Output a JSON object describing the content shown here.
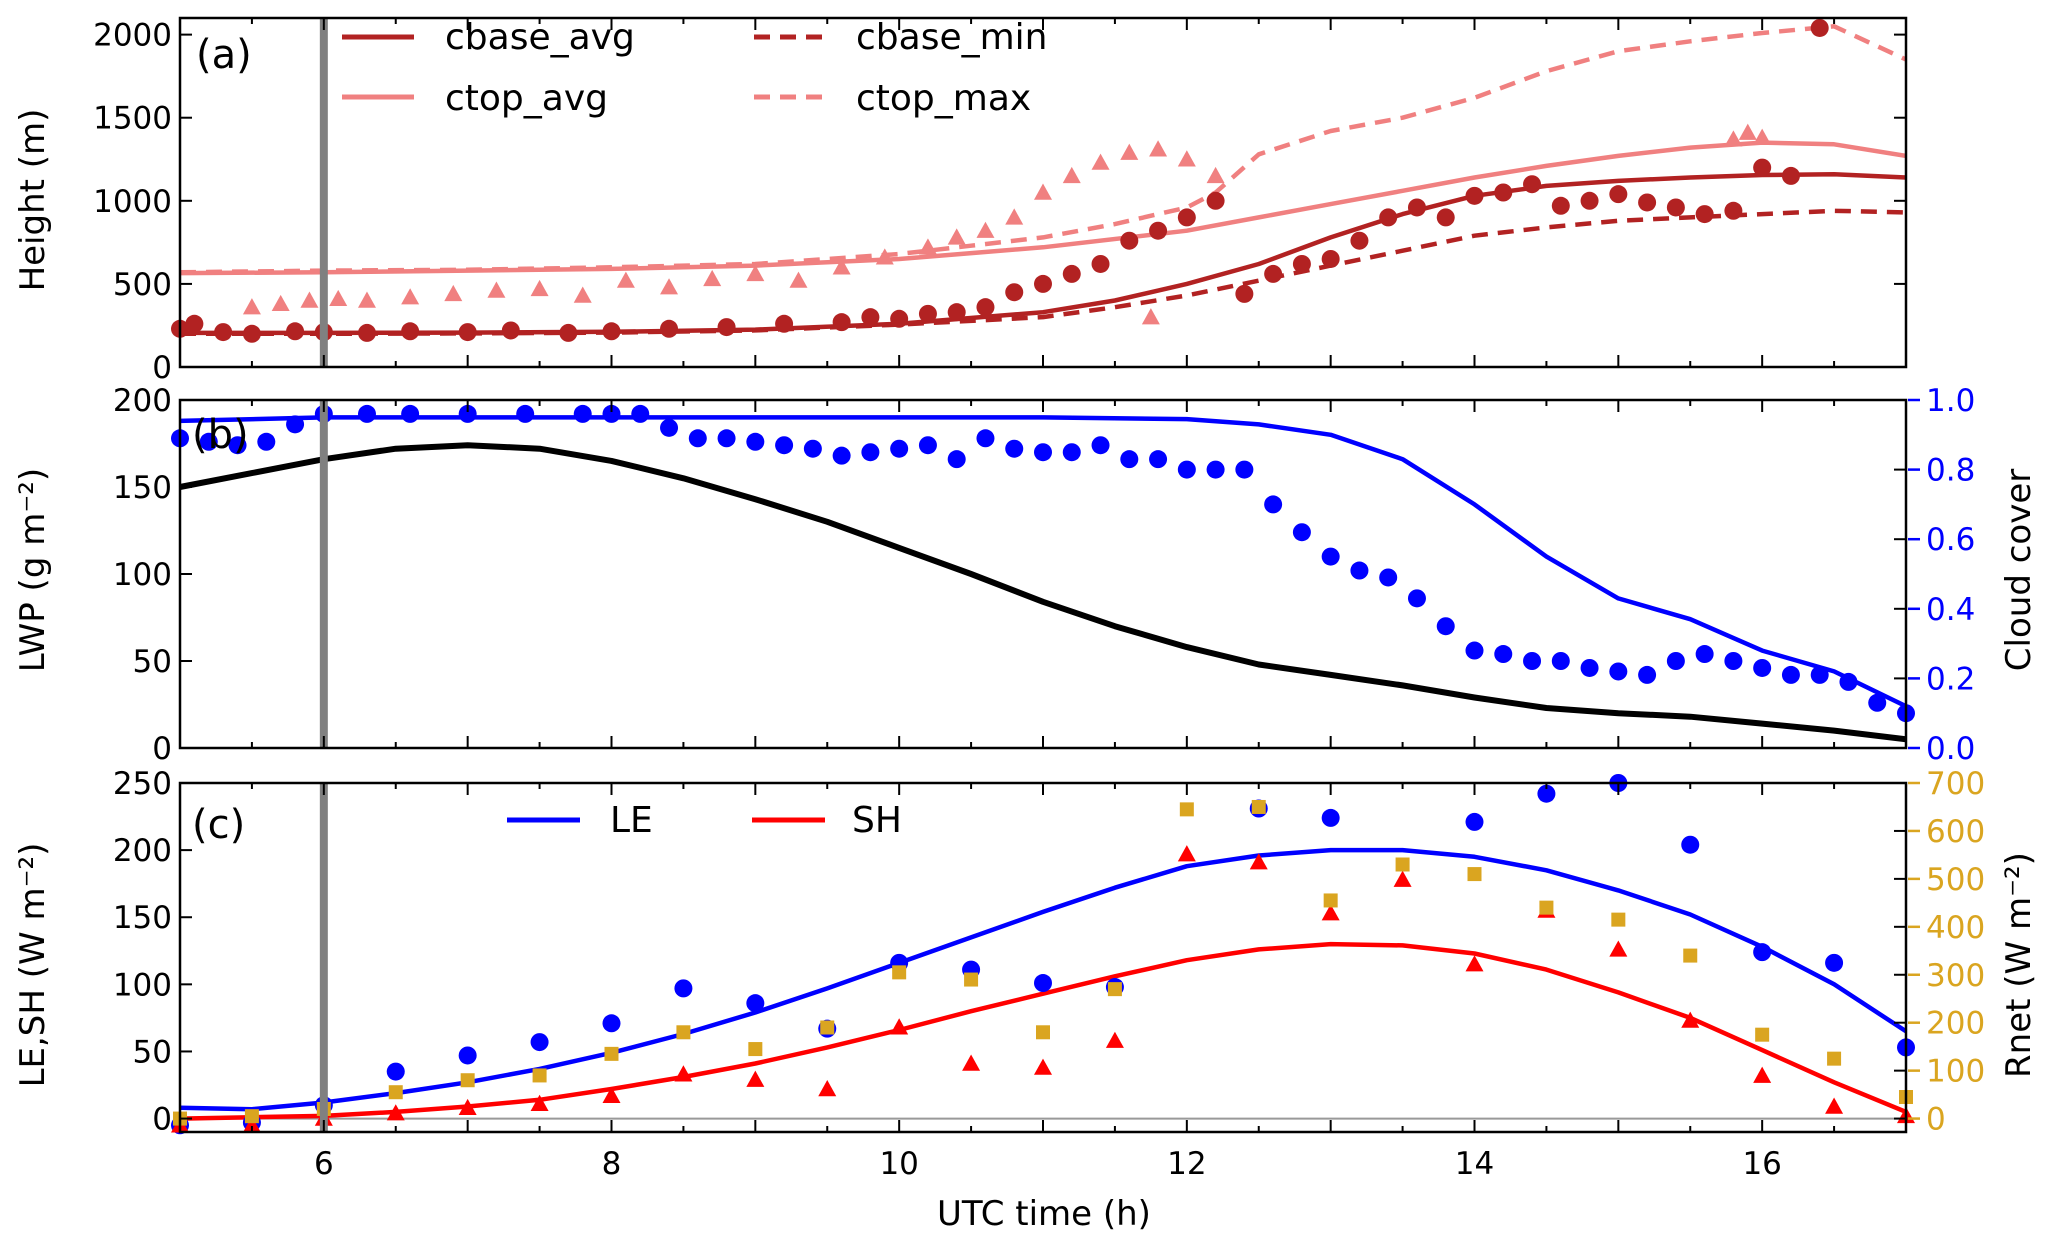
{
  "colors": {
    "cbase": "#b22222",
    "ctop": "#f08080",
    "cloud": "#0000ff",
    "lwp": "#000000",
    "le": "#0000ff",
    "sh": "#ff0000",
    "rnet": "#daa520",
    "vline": "#808080"
  },
  "chart_data": [
    {
      "type": "line",
      "panel_label": "(a)",
      "xlim": [
        5,
        17
      ],
      "ylim": [
        0,
        2100
      ],
      "ylabel": "Height (m)",
      "yticks": [
        0,
        500,
        1000,
        1500,
        2000
      ],
      "vline_x": 6,
      "series": [
        {
          "name": "cbase_avg",
          "style": "solid",
          "color": "cbase",
          "x": [
            5,
            6,
            7,
            8,
            9,
            10,
            11,
            11.5,
            12,
            12.5,
            13,
            13.5,
            14,
            14.5,
            15,
            15.5,
            16,
            16.5,
            17
          ],
          "y": [
            205,
            205,
            207,
            212,
            225,
            260,
            330,
            400,
            500,
            620,
            780,
            920,
            1030,
            1090,
            1120,
            1140,
            1155,
            1160,
            1140
          ]
        },
        {
          "name": "cbase_min",
          "style": "dashed",
          "color": "cbase",
          "x": [
            5,
            6,
            7,
            8,
            9,
            10,
            11,
            11.5,
            12,
            12.5,
            13,
            13.5,
            14,
            14.5,
            15,
            15.5,
            16,
            16.5,
            17
          ],
          "y": [
            200,
            200,
            202,
            207,
            220,
            255,
            300,
            360,
            430,
            520,
            610,
            700,
            790,
            840,
            880,
            900,
            920,
            940,
            930
          ]
        },
        {
          "name": "ctop_avg",
          "style": "solid",
          "color": "ctop",
          "x": [
            5,
            6,
            7,
            8,
            9,
            10,
            11,
            12,
            12.5,
            13,
            13.5,
            14,
            14.5,
            15,
            15.5,
            16,
            16.5,
            17
          ],
          "y": [
            565,
            570,
            580,
            590,
            610,
            650,
            720,
            820,
            900,
            980,
            1060,
            1140,
            1210,
            1270,
            1320,
            1350,
            1340,
            1270
          ]
        },
        {
          "name": "ctop_max",
          "style": "dashed",
          "color": "ctop",
          "x": [
            5,
            6,
            7,
            8,
            9,
            9.5,
            10,
            10.5,
            11,
            11.5,
            12,
            12.2,
            12.5,
            13,
            13.5,
            14,
            14.5,
            15,
            15.5,
            16,
            16.5,
            17
          ],
          "y": [
            570,
            580,
            585,
            600,
            620,
            650,
            680,
            730,
            780,
            860,
            960,
            1050,
            1280,
            1420,
            1500,
            1620,
            1780,
            1900,
            1960,
            2010,
            2050,
            1850
          ]
        },
        {
          "name": "cbase_obs",
          "style": "markers",
          "marker": "circle",
          "color": "cbase",
          "x": [
            5,
            5.1,
            5.3,
            5.5,
            5.8,
            6,
            6.3,
            6.6,
            7,
            7.3,
            7.7,
            8,
            8.4,
            8.8,
            9.2,
            9.6,
            9.8,
            10,
            10.2,
            10.4,
            10.6,
            10.8,
            11,
            11.2,
            11.4,
            11.6,
            11.8,
            12,
            12.2,
            12.4,
            12.6,
            12.8,
            13,
            13.2,
            13.4,
            13.6,
            13.8,
            14,
            14.2,
            14.4,
            14.6,
            14.8,
            15,
            15.2,
            15.4,
            15.6,
            15.8,
            16,
            16.2,
            16.4
          ],
          "y": [
            230,
            260,
            210,
            200,
            215,
            210,
            205,
            215,
            210,
            220,
            205,
            215,
            230,
            240,
            260,
            270,
            300,
            290,
            320,
            330,
            360,
            450,
            500,
            560,
            620,
            760,
            820,
            900,
            1000,
            440,
            560,
            620,
            650,
            760,
            900,
            960,
            900,
            1030,
            1050,
            1100,
            970,
            1000,
            1040,
            990,
            960,
            920,
            940,
            1200,
            1150,
            2040
          ]
        },
        {
          "name": "ctop_obs",
          "style": "markers",
          "marker": "triangle",
          "color": "ctop",
          "x": [
            5.5,
            5.7,
            5.9,
            6.1,
            6.3,
            6.6,
            6.9,
            7.2,
            7.5,
            7.8,
            8.1,
            8.4,
            8.7,
            9,
            9.3,
            9.6,
            9.9,
            10.2,
            10.4,
            10.6,
            10.8,
            11,
            11.2,
            11.4,
            11.6,
            11.8,
            12,
            12.2,
            11.75,
            15.8,
            15.9,
            16
          ],
          "y": [
            360,
            380,
            400,
            410,
            400,
            420,
            440,
            460,
            470,
            430,
            520,
            480,
            530,
            560,
            520,
            600,
            660,
            720,
            780,
            820,
            900,
            1050,
            1150,
            1230,
            1290,
            1310,
            1250,
            1150,
            300,
            1370,
            1410,
            1380
          ]
        }
      ]
    },
    {
      "type": "line",
      "panel_label": "(b)",
      "xlim": [
        5,
        17
      ],
      "ylim": [
        0,
        200
      ],
      "ylabel": "LWP (g m⁻²)",
      "yticks": [
        0,
        50,
        100,
        150,
        200
      ],
      "y2lim": [
        0,
        1.0
      ],
      "y2label": "Cloud cover",
      "y2ticks": [
        "0.0",
        "0.2",
        "0.4",
        "0.6",
        "0.8",
        "1.0"
      ],
      "series": [
        {
          "name": "LWP",
          "style": "solid",
          "axis": "left",
          "color": "lwp",
          "x": [
            5,
            5.5,
            6,
            6.5,
            7,
            7.5,
            8,
            8.5,
            9,
            9.5,
            10,
            10.5,
            11,
            11.5,
            12,
            12.5,
            13,
            13.5,
            14,
            14.5,
            15,
            15.5,
            16,
            16.5,
            17
          ],
          "y": [
            150,
            158,
            166,
            172,
            174,
            172,
            165,
            155,
            143,
            130,
            115,
            100,
            84,
            70,
            58,
            48,
            42,
            36,
            29,
            23,
            20,
            18,
            14,
            10,
            5
          ]
        },
        {
          "name": "cloud_cover_model",
          "style": "solid",
          "axis": "right",
          "color": "cloud",
          "x": [
            5,
            6,
            7,
            8,
            9,
            10,
            11,
            12,
            12.5,
            13,
            13.5,
            14,
            14.5,
            15,
            15.5,
            16,
            16.5,
            17
          ],
          "y": [
            0.94,
            0.95,
            0.95,
            0.95,
            0.95,
            0.95,
            0.95,
            0.945,
            0.93,
            0.9,
            0.83,
            0.7,
            0.55,
            0.43,
            0.37,
            0.28,
            0.22,
            0.12
          ]
        },
        {
          "name": "cloud_cover_obs",
          "style": "markers",
          "marker": "circle",
          "axis": "right",
          "color": "cloud",
          "x": [
            5,
            5.2,
            5.4,
            5.6,
            5.8,
            6,
            6.3,
            6.6,
            7,
            7.4,
            7.8,
            8,
            8.2,
            8.4,
            8.6,
            8.8,
            9,
            9.2,
            9.4,
            9.6,
            9.8,
            10,
            10.2,
            10.4,
            10.6,
            10.8,
            11,
            11.2,
            11.4,
            11.6,
            11.8,
            12,
            12.2,
            12.4,
            12.6,
            12.8,
            13,
            13.2,
            13.4,
            13.6,
            13.8,
            14,
            14.2,
            14.4,
            14.6,
            14.8,
            15,
            15.2,
            15.4,
            15.6,
            15.8,
            16,
            16.2,
            16.4,
            16.6,
            16.8,
            17
          ],
          "y": [
            0.89,
            0.88,
            0.87,
            0.88,
            0.93,
            0.96,
            0.96,
            0.96,
            0.96,
            0.96,
            0.96,
            0.96,
            0.96,
            0.92,
            0.89,
            0.89,
            0.88,
            0.87,
            0.86,
            0.84,
            0.85,
            0.86,
            0.87,
            0.83,
            0.89,
            0.86,
            0.85,
            0.85,
            0.87,
            0.83,
            0.83,
            0.8,
            0.8,
            0.8,
            0.7,
            0.62,
            0.55,
            0.51,
            0.49,
            0.43,
            0.35,
            0.28,
            0.27,
            0.25,
            0.25,
            0.23,
            0.22,
            0.21,
            0.25,
            0.27,
            0.25,
            0.23,
            0.21,
            0.21,
            0.19,
            0.13,
            0.1
          ]
        }
      ]
    },
    {
      "type": "line",
      "panel_label": "(c)",
      "xlim": [
        5,
        17
      ],
      "ylim": [
        -10,
        250
      ],
      "ylabel": "LE,SH (W m⁻²)",
      "yticks": [
        0,
        50,
        100,
        150,
        200,
        250
      ],
      "y2lim": [
        -28,
        700
      ],
      "y2label": "Rnet (W m⁻²)",
      "y2ticks": [
        0,
        100,
        200,
        300,
        400,
        500,
        600,
        700
      ],
      "xlabel": "UTC time (h)",
      "xticks": [
        6,
        8,
        10,
        12,
        14,
        16
      ],
      "vline_x": 6,
      "series": [
        {
          "name": "LE",
          "style": "solid",
          "axis": "left",
          "color": "le",
          "x": [
            5,
            5.5,
            6,
            6.5,
            7,
            7.5,
            8,
            8.5,
            9,
            9.5,
            10,
            10.5,
            11,
            11.5,
            12,
            12.5,
            13,
            13.5,
            14,
            14.5,
            15,
            15.5,
            16,
            16.5,
            17
          ],
          "y": [
            8,
            7,
            12,
            19,
            27,
            37,
            49,
            63,
            79,
            97,
            116,
            135,
            154,
            172,
            188,
            196,
            200,
            200,
            195,
            185,
            170,
            152,
            128,
            100,
            65
          ]
        },
        {
          "name": "SH",
          "style": "solid",
          "axis": "left",
          "color": "sh",
          "x": [
            5,
            5.5,
            6,
            6.5,
            7,
            7.5,
            8,
            8.5,
            9,
            9.5,
            10,
            10.5,
            11,
            11.5,
            12,
            12.5,
            13,
            13.5,
            14,
            14.5,
            15,
            15.5,
            16,
            16.5,
            17
          ],
          "y": [
            0,
            1,
            2,
            5,
            9,
            14,
            22,
            31,
            41,
            53,
            66,
            80,
            93,
            106,
            118,
            126,
            130,
            129,
            123,
            111,
            94,
            75,
            51,
            27,
            5
          ]
        },
        {
          "name": "LE_obs",
          "style": "markers",
          "marker": "circle",
          "axis": "left",
          "color": "le",
          "x": [
            5,
            5.5,
            6,
            6.5,
            7,
            7.5,
            8,
            8.5,
            9,
            9.5,
            10,
            10.5,
            11,
            11.5,
            12.5,
            13,
            14,
            14.5,
            15,
            15.5,
            16,
            16.5,
            17
          ],
          "y": [
            -5,
            -3,
            10,
            35,
            47,
            57,
            71,
            97,
            86,
            67,
            116,
            111,
            101,
            98,
            231,
            224,
            221,
            242,
            250,
            204,
            124,
            116,
            53
          ]
        },
        {
          "name": "SH_obs",
          "style": "markers",
          "marker": "triangle",
          "axis": "left",
          "color": "sh",
          "x": [
            5,
            5.5,
            6,
            6.5,
            7,
            7.5,
            8,
            8.5,
            9,
            9.5,
            10,
            10.5,
            11,
            11.5,
            12,
            12.5,
            13,
            13.5,
            14,
            14.5,
            15,
            15.5,
            16,
            16.5,
            17
          ],
          "y": [
            -5,
            -5,
            0,
            4,
            8,
            11,
            17,
            33,
            29,
            22,
            68,
            41,
            38,
            58,
            197,
            191,
            153,
            178,
            115,
            155,
            126,
            73,
            32,
            9,
            2
          ]
        },
        {
          "name": "Rnet_obs",
          "style": "markers",
          "marker": "square",
          "axis": "right",
          "color": "rnet",
          "x": [
            5,
            5.5,
            6,
            6.5,
            7,
            7.5,
            8,
            8.5,
            9,
            9.5,
            10,
            10.5,
            11,
            11.5,
            12,
            12.5,
            13,
            13.5,
            14,
            14.5,
            15,
            15.5,
            16,
            16.5,
            17
          ],
          "y": [
            0,
            5,
            20,
            55,
            80,
            90,
            135,
            180,
            145,
            190,
            305,
            290,
            180,
            270,
            645,
            650,
            455,
            530,
            510,
            440,
            415,
            340,
            175,
            125,
            45
          ]
        }
      ],
      "legend": [
        {
          "name": "LE",
          "color": "le"
        },
        {
          "name": "SH",
          "color": "sh"
        }
      ]
    }
  ]
}
